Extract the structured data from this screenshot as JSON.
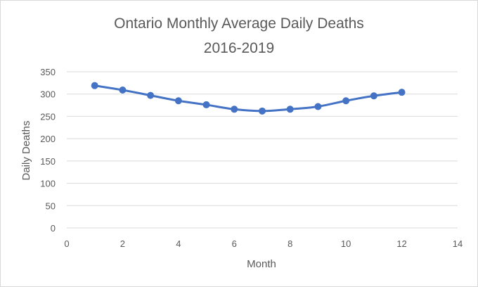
{
  "chart_data": {
    "type": "scatter",
    "title_lines": [
      "Ontario Monthly Average Daily Deaths",
      "2016-2019"
    ],
    "xlabel": "Month",
    "ylabel": "Daily Deaths",
    "xlim": [
      0,
      14
    ],
    "ylim": [
      0,
      350
    ],
    "x_ticks": [
      0,
      2,
      4,
      6,
      8,
      10,
      12,
      14
    ],
    "y_ticks": [
      0,
      50,
      100,
      150,
      200,
      250,
      300,
      350
    ],
    "grid": "horizontal",
    "legend": "none",
    "series": [
      {
        "color": "#4472c4",
        "x": [
          1,
          2,
          3,
          4,
          5,
          6,
          7,
          8,
          9,
          10,
          11,
          12
        ],
        "y": [
          319,
          309,
          297,
          285,
          276,
          266,
          262,
          266,
          272,
          285,
          296,
          304
        ]
      }
    ]
  }
}
